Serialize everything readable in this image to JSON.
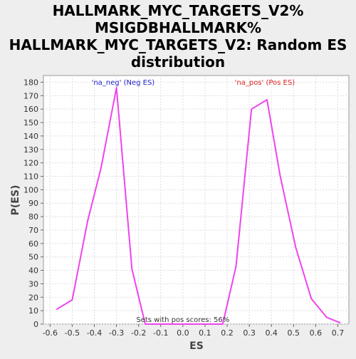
{
  "chart_data": {
    "type": "line",
    "title": "HALLMARK_MYC_TARGETS_V2%\nMSIGDBHALLMARK%\nHALLMARK_MYC_TARGETS_V2: Random ES\ndistribution",
    "xlabel": "ES",
    "ylabel": "P(ES)",
    "xlim": [
      -0.63,
      0.75
    ],
    "ylim": [
      0,
      185
    ],
    "x_ticks": [
      -0.6,
      -0.5,
      -0.4,
      -0.3,
      -0.2,
      -0.1,
      0.0,
      0.1,
      0.2,
      0.3,
      0.4,
      0.5,
      0.6,
      0.7
    ],
    "x_tick_labels": [
      "-0.6",
      "-0.5",
      "-0.4",
      "-0.3",
      "-0.2",
      "-0.1",
      "0.0",
      "0.1",
      "0.2",
      "0.3",
      "0.4",
      "0.5",
      "0.6",
      "0.7"
    ],
    "y_ticks": [
      0,
      10,
      20,
      30,
      40,
      50,
      60,
      70,
      80,
      90,
      100,
      110,
      120,
      130,
      140,
      150,
      160,
      170,
      180
    ],
    "grid": true,
    "series": [
      {
        "color": "#ee44ee",
        "x": [
          -0.57,
          -0.5,
          -0.43,
          -0.37,
          -0.3,
          -0.23,
          -0.17,
          -0.1,
          -0.03,
          0.04,
          0.11,
          0.18,
          0.24,
          0.31,
          0.38,
          0.44,
          0.51,
          0.58,
          0.65,
          0.71
        ],
        "y": [
          11,
          18,
          77,
          116,
          176,
          41,
          0,
          0,
          0,
          0,
          0,
          0,
          43,
          160,
          167,
          110,
          57,
          19,
          5,
          1
        ]
      }
    ],
    "annotations": [
      {
        "text": "'na_neg' (Neg ES)",
        "color": "#2222cc",
        "x": -0.27,
        "y": 178
      },
      {
        "text": "'na_pos' (Pos ES)",
        "color": "#dd2222",
        "x": 0.37,
        "y": 178
      },
      {
        "text": "Sets with pos scores: 56%",
        "color": "#333333",
        "x": 0.0,
        "y": 1.5
      }
    ]
  }
}
